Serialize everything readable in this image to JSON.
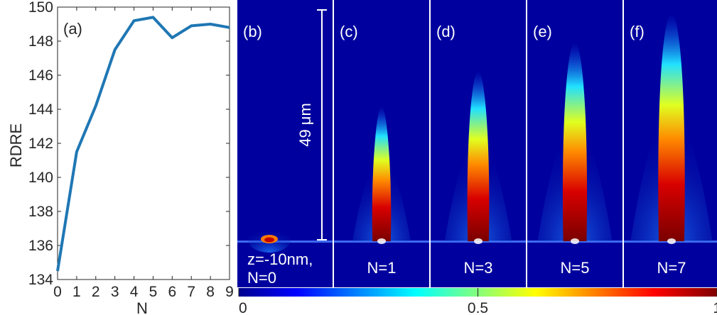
{
  "chart_data": [
    {
      "type": "line",
      "panel_label": "(a)",
      "xlabel": "N",
      "ylabel": "RDRE",
      "x": [
        0,
        1,
        2,
        3,
        4,
        5,
        6,
        7,
        8,
        9
      ],
      "values": [
        134.5,
        141.5,
        144.2,
        147.5,
        149.2,
        149.4,
        148.2,
        148.9,
        149.0,
        148.8
      ],
      "xlim": [
        0,
        9
      ],
      "ylim": [
        134,
        150
      ],
      "xticks": [
        "0",
        "1",
        "2",
        "3",
        "4",
        "5",
        "6",
        "7",
        "8",
        "9"
      ],
      "yticks": [
        "134",
        "136",
        "138",
        "140",
        "142",
        "144",
        "146",
        "148",
        "150"
      ],
      "line_color": "#1f77b4",
      "grid": false
    },
    {
      "type": "heatmap",
      "panels": [
        {
          "label": "(b)",
          "caption": "z=-10nm,",
          "caption2": "N=0",
          "intensity": 0.0
        },
        {
          "label": "(c)",
          "caption": "N=1",
          "intensity": 0.35
        },
        {
          "label": "(d)",
          "caption": "N=3",
          "intensity": 0.6
        },
        {
          "label": "(e)",
          "caption": "N=5",
          "intensity": 0.8
        },
        {
          "label": "(f)",
          "caption": "N=7",
          "intensity": 1.0
        }
      ],
      "scale_bar_label": "49 μm",
      "colorbar": {
        "colormap": "jet",
        "ticks": [
          "0",
          "0.5",
          "1"
        ],
        "range": [
          0,
          1
        ]
      }
    }
  ]
}
